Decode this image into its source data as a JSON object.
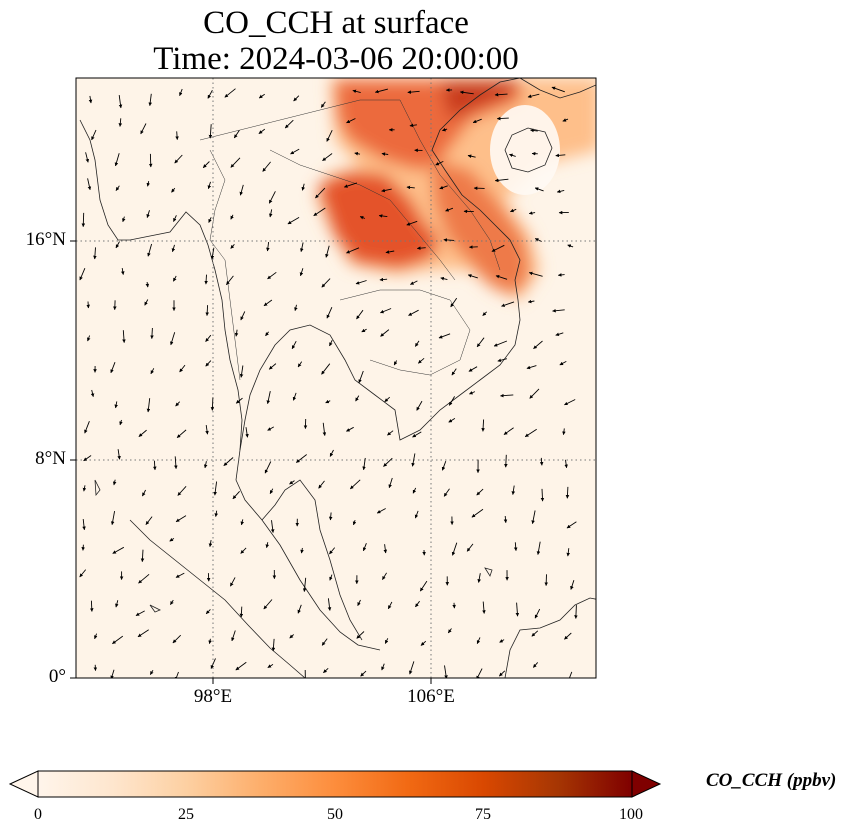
{
  "title": {
    "line1": "CO_CCH at surface",
    "line2": "Time: 2024-03-06 20:00:00"
  },
  "map": {
    "lat_ticks": [
      {
        "label": "16°N",
        "lat": 16
      },
      {
        "label": "8°N",
        "lat": 8
      },
      {
        "label": "0°",
        "lat": 0
      }
    ],
    "lon_ticks": [
      {
        "label": "98°E",
        "lon": 98
      },
      {
        "label": "106°E",
        "lon": 106
      }
    ],
    "gridlines": true,
    "field_colors": {
      "low": "#fff5eb",
      "mid": "#fdae6b",
      "high": "#e6550d",
      "max": "#7f0000"
    }
  },
  "colorbar": {
    "label": "CO_CCH (ppbv)",
    "ticks": [
      "0",
      "25",
      "50",
      "75",
      "100"
    ],
    "range": [
      0,
      100
    ],
    "extend": "both",
    "colors": [
      "#fff5eb",
      "#fee6ce",
      "#fdd0a2",
      "#fdae6b",
      "#fd8d3c",
      "#f16913",
      "#d94801",
      "#a63603",
      "#7f0000"
    ]
  }
}
